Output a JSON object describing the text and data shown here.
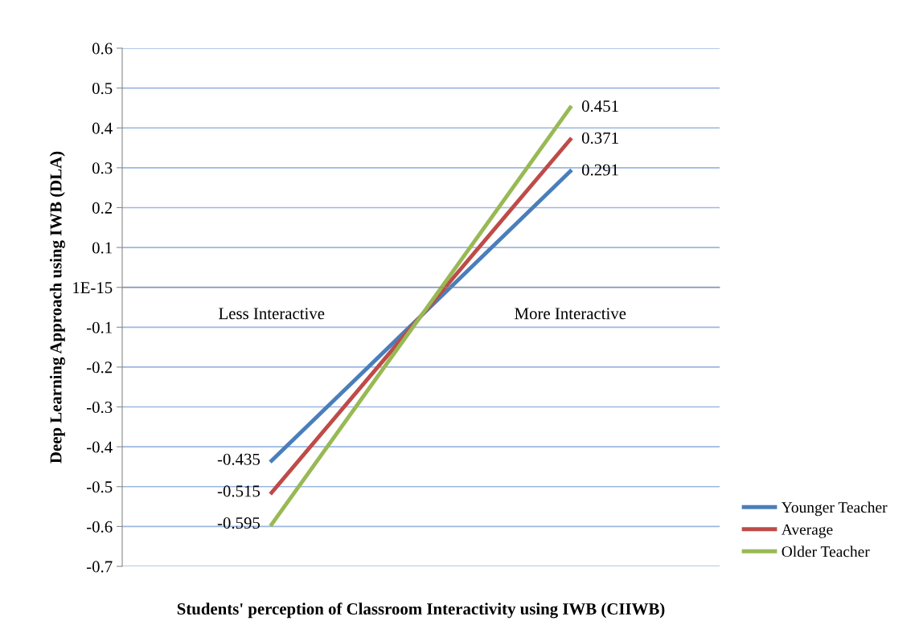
{
  "chart_data": {
    "type": "line",
    "xlabel": "Students' perception of Classroom Interactivity using IWB (CIIWB)",
    "ylabel": "Deep Learning Approach using IWB (DLA)",
    "categories": [
      "Less Interactive",
      "More Interactive"
    ],
    "series": [
      {
        "name": "Younger Teacher",
        "color": "#4a7ebb",
        "values": [
          -0.435,
          0.291
        ]
      },
      {
        "name": "Average",
        "color": "#be4b48",
        "values": [
          -0.515,
          0.371
        ]
      },
      {
        "name": "Older Teacher",
        "color": "#98b954",
        "values": [
          -0.595,
          0.451
        ]
      }
    ],
    "ylim": [
      -0.7,
      0.6
    ],
    "yticks": [
      -0.7,
      -0.6,
      -0.5,
      -0.4,
      -0.3,
      -0.2,
      -0.1,
      {
        "value": 0,
        "label": "1E-15"
      },
      0.1,
      0.2,
      0.3,
      0.4,
      0.5,
      0.6
    ],
    "grid": "y",
    "legend": "bottom right",
    "data_labels": true,
    "marker": "none",
    "line_style": "solid"
  }
}
